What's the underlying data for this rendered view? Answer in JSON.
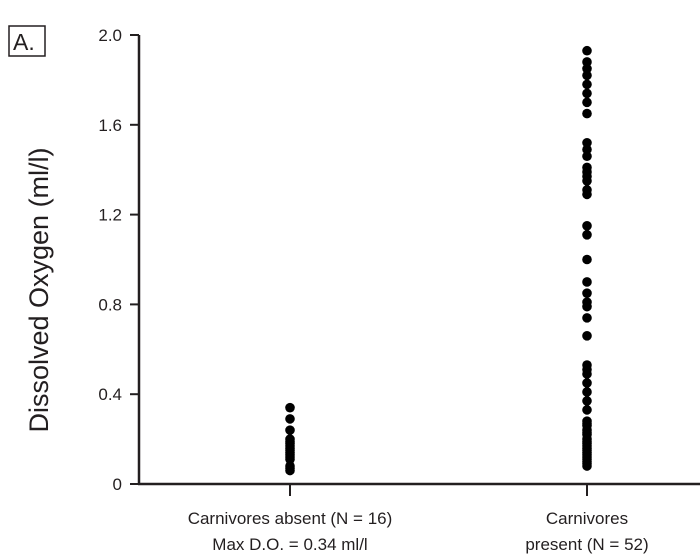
{
  "panel_label": "A.",
  "chart_data": {
    "type": "scatter",
    "ylabel": "Dissolved Oxygen (ml/l)",
    "xlabel": "",
    "ylim": [
      0,
      2.0
    ],
    "yticks": [
      0,
      0.4,
      0.8,
      1.2,
      1.6,
      2.0
    ],
    "ytick_labels": [
      "0",
      "0.4",
      "0.8",
      "1.2",
      "1.6",
      "2.0"
    ],
    "grid": false,
    "categories": [
      {
        "label_lines": [
          "Carnivores absent (N = 16)",
          "Max D.O. = 0.34 ml/l"
        ],
        "values": [
          0.34,
          0.29,
          0.24,
          0.2,
          0.19,
          0.18,
          0.17,
          0.16,
          0.15,
          0.14,
          0.13,
          0.12,
          0.11,
          0.08,
          0.07,
          0.06
        ]
      },
      {
        "label_lines": [
          "Carnivores",
          "present (N = 52)"
        ],
        "values": [
          1.93,
          1.88,
          1.85,
          1.82,
          1.78,
          1.74,
          1.7,
          1.65,
          1.52,
          1.49,
          1.46,
          1.41,
          1.39,
          1.37,
          1.35,
          1.31,
          1.29,
          1.15,
          1.11,
          1.0,
          0.9,
          0.85,
          0.81,
          0.79,
          0.74,
          0.66,
          0.53,
          0.51,
          0.49,
          0.45,
          0.41,
          0.37,
          0.33,
          0.28,
          0.26,
          0.24,
          0.22,
          0.2,
          0.18,
          0.17,
          0.16,
          0.15,
          0.14,
          0.13,
          0.12,
          0.11,
          0.1,
          0.09,
          0.08,
          0.23,
          0.19,
          0.27
        ]
      }
    ],
    "marker_color": "#000000",
    "axis_color": "#231f20"
  }
}
